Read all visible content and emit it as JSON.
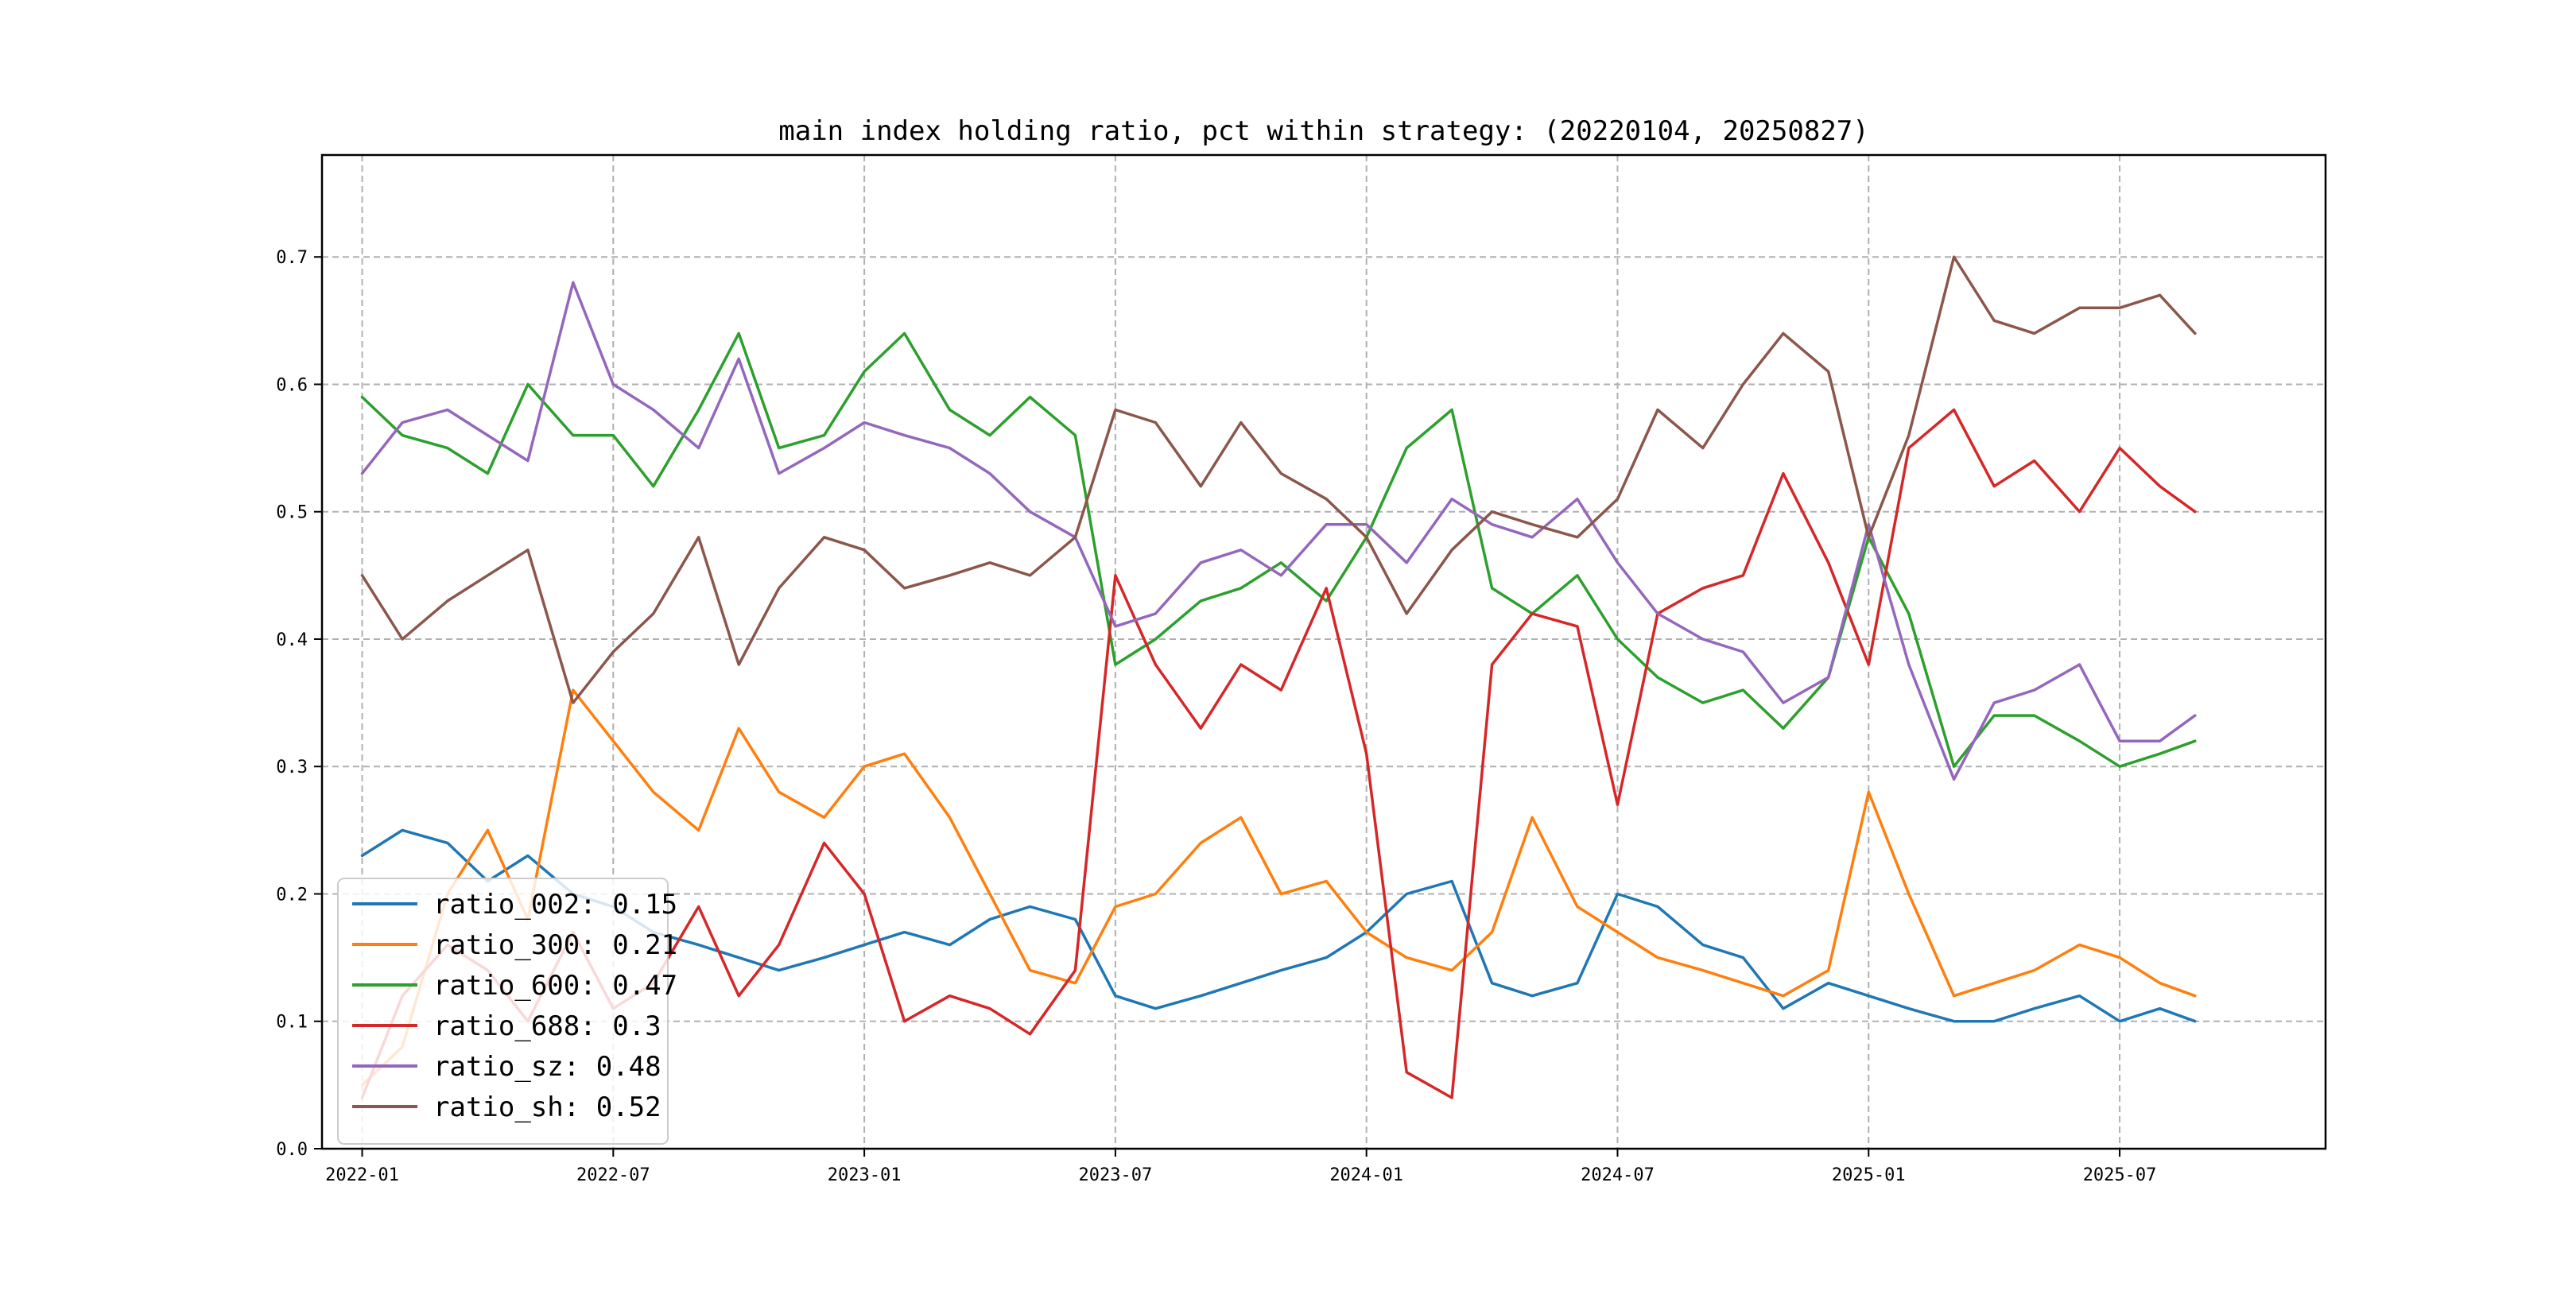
{
  "chart_data": {
    "type": "line",
    "title": "main index holding ratio, pct within strategy: (20220104, 20250827)",
    "xlabel": "",
    "ylabel": "",
    "x_range": [
      2021.92,
      2025.91
    ],
    "ylim": [
      0.0,
      0.78
    ],
    "xticks": [
      {
        "value": 2022.0,
        "label": "2022-01"
      },
      {
        "value": 2022.5,
        "label": "2022-07"
      },
      {
        "value": 2023.0,
        "label": "2023-01"
      },
      {
        "value": 2023.5,
        "label": "2023-07"
      },
      {
        "value": 2024.0,
        "label": "2024-01"
      },
      {
        "value": 2024.5,
        "label": "2024-07"
      },
      {
        "value": 2025.0,
        "label": "2025-01"
      },
      {
        "value": 2025.5,
        "label": "2025-07"
      }
    ],
    "yticks": [
      0.0,
      0.1,
      0.2,
      0.3,
      0.4,
      0.5,
      0.6,
      0.7
    ],
    "ytick_labels": [
      "0.0",
      "0.1",
      "0.2",
      "0.3",
      "0.4",
      "0.5",
      "0.6",
      "0.7"
    ],
    "grid": true,
    "legend_position": "lower-left",
    "x": [
      2022.0,
      2022.08,
      2022.17,
      2022.25,
      2022.33,
      2022.42,
      2022.5,
      2022.58,
      2022.67,
      2022.75,
      2022.83,
      2022.92,
      2023.0,
      2023.08,
      2023.17,
      2023.25,
      2023.33,
      2023.42,
      2023.5,
      2023.58,
      2023.67,
      2023.75,
      2023.83,
      2023.92,
      2024.0,
      2024.08,
      2024.17,
      2024.25,
      2024.33,
      2024.42,
      2024.5,
      2024.58,
      2024.67,
      2024.75,
      2024.83,
      2024.92,
      2025.0,
      2025.08,
      2025.17,
      2025.25,
      2025.33,
      2025.42,
      2025.5,
      2025.58,
      2025.65
    ],
    "series": [
      {
        "name": "ratio_002",
        "legend_value": "0.15",
        "color": "#1f77b4",
        "values": [
          0.23,
          0.25,
          0.24,
          0.21,
          0.23,
          0.2,
          0.19,
          0.17,
          0.16,
          0.15,
          0.14,
          0.15,
          0.16,
          0.17,
          0.16,
          0.18,
          0.19,
          0.18,
          0.12,
          0.11,
          0.12,
          0.13,
          0.14,
          0.15,
          0.17,
          0.2,
          0.21,
          0.13,
          0.12,
          0.13,
          0.2,
          0.19,
          0.16,
          0.15,
          0.11,
          0.13,
          0.12,
          0.11,
          0.1,
          0.1,
          0.11,
          0.12,
          0.1,
          0.11,
          0.1
        ]
      },
      {
        "name": "ratio_300",
        "legend_value": "0.21",
        "color": "#ff7f0e",
        "values": [
          0.05,
          0.08,
          0.2,
          0.25,
          0.18,
          0.36,
          0.32,
          0.28,
          0.25,
          0.33,
          0.28,
          0.26,
          0.3,
          0.31,
          0.26,
          0.2,
          0.14,
          0.13,
          0.19,
          0.2,
          0.24,
          0.26,
          0.2,
          0.21,
          0.17,
          0.15,
          0.14,
          0.17,
          0.26,
          0.19,
          0.17,
          0.15,
          0.14,
          0.13,
          0.12,
          0.14,
          0.28,
          0.2,
          0.12,
          0.13,
          0.14,
          0.16,
          0.15,
          0.13,
          0.12
        ]
      },
      {
        "name": "ratio_600",
        "legend_value": "0.47",
        "color": "#2ca02c",
        "values": [
          0.59,
          0.56,
          0.55,
          0.53,
          0.6,
          0.56,
          0.56,
          0.52,
          0.58,
          0.64,
          0.55,
          0.56,
          0.61,
          0.64,
          0.58,
          0.56,
          0.59,
          0.56,
          0.38,
          0.4,
          0.43,
          0.44,
          0.46,
          0.43,
          0.48,
          0.55,
          0.58,
          0.44,
          0.42,
          0.45,
          0.4,
          0.37,
          0.35,
          0.36,
          0.33,
          0.37,
          0.48,
          0.42,
          0.3,
          0.34,
          0.34,
          0.32,
          0.3,
          0.31,
          0.32
        ]
      },
      {
        "name": "ratio_688",
        "legend_value": "0.3",
        "color": "#d62728",
        "values": [
          0.04,
          0.12,
          0.16,
          0.14,
          0.1,
          0.17,
          0.11,
          0.13,
          0.19,
          0.12,
          0.16,
          0.24,
          0.2,
          0.1,
          0.12,
          0.11,
          0.09,
          0.14,
          0.45,
          0.38,
          0.33,
          0.38,
          0.36,
          0.44,
          0.31,
          0.06,
          0.04,
          0.38,
          0.42,
          0.41,
          0.27,
          0.42,
          0.44,
          0.45,
          0.53,
          0.46,
          0.38,
          0.55,
          0.58,
          0.52,
          0.54,
          0.5,
          0.55,
          0.52,
          0.5
        ]
      },
      {
        "name": "ratio_sz",
        "legend_value": "0.48",
        "color": "#9467bd",
        "values": [
          0.53,
          0.57,
          0.58,
          0.56,
          0.54,
          0.68,
          0.6,
          0.58,
          0.55,
          0.62,
          0.53,
          0.55,
          0.57,
          0.56,
          0.55,
          0.53,
          0.5,
          0.48,
          0.41,
          0.42,
          0.46,
          0.47,
          0.45,
          0.49,
          0.49,
          0.46,
          0.51,
          0.49,
          0.48,
          0.51,
          0.46,
          0.42,
          0.4,
          0.39,
          0.35,
          0.37,
          0.49,
          0.38,
          0.29,
          0.35,
          0.36,
          0.38,
          0.32,
          0.32,
          0.34
        ]
      },
      {
        "name": "ratio_sh",
        "legend_value": "0.52",
        "color": "#8c564b",
        "values": [
          0.45,
          0.4,
          0.43,
          0.45,
          0.47,
          0.35,
          0.39,
          0.42,
          0.48,
          0.38,
          0.44,
          0.48,
          0.47,
          0.44,
          0.45,
          0.46,
          0.45,
          0.48,
          0.58,
          0.57,
          0.52,
          0.57,
          0.53,
          0.51,
          0.48,
          0.42,
          0.47,
          0.5,
          0.49,
          0.48,
          0.51,
          0.58,
          0.55,
          0.6,
          0.64,
          0.61,
          0.48,
          0.56,
          0.7,
          0.65,
          0.64,
          0.66,
          0.66,
          0.67,
          0.64
        ]
      }
    ]
  }
}
